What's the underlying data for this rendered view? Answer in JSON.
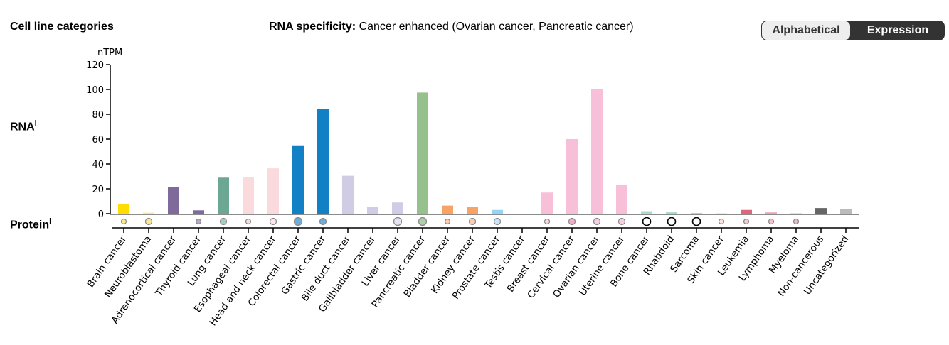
{
  "header": {
    "title": "Cell line categories",
    "specificity_label": "RNA specificity:",
    "specificity_value": "Cancer enhanced (Ovarian cancer, Pancreatic cancer)",
    "rna_label": "RNA",
    "protein_label": "Protein",
    "info_mark": "i"
  },
  "toggle": {
    "options": [
      "Alphabetical",
      "Expression"
    ],
    "selected": "Alphabetical"
  },
  "chart_data": {
    "type": "bar",
    "ylabel": "nTPM",
    "ylim": [
      0,
      120
    ],
    "yticks": [
      0,
      20,
      40,
      60,
      80,
      100,
      120
    ],
    "grid": false,
    "categories": [
      "Brain cancer",
      "Neuroblastoma",
      "Adrenocortical cancer",
      "Thyroid cancer",
      "Lung cancer",
      "Esophageal cancer",
      "Head and neck cancer",
      "Colorectal cancer",
      "Gastric cancer",
      "Bile duct cancer",
      "Gallbladder cancer",
      "Liver cancer",
      "Pancreatic cancer",
      "Bladder cancer",
      "Kidney cancer",
      "Prostate cancer",
      "Testis cancer",
      "Breast cancer",
      "Cervical cancer",
      "Ovarian cancer",
      "Uterine cancer",
      "Bone cancer",
      "Rhabdoid",
      "Sarcoma",
      "Skin cancer",
      "Leukemia",
      "Lymphoma",
      "Myeloma",
      "Non-cancerous",
      "Uncategorized"
    ],
    "values": [
      8,
      0.8,
      21.5,
      2.7,
      29,
      29.5,
      36.5,
      55,
      84.5,
      30.5,
      5.5,
      9,
      97.5,
      6.5,
      5.5,
      3,
      0,
      17,
      60,
      100.5,
      23,
      2,
      1.2,
      0.6,
      0.3,
      3,
      1,
      0.5,
      4.5,
      3.5
    ],
    "colors": [
      "#ffdd00",
      "#fbe98f",
      "#7f6a9c",
      "#7f6a9c",
      "#6ba792",
      "#fadadd",
      "#fadadd",
      "#1280c4",
      "#1280c4",
      "#d0cce6",
      "#d0cce6",
      "#d0cce6",
      "#96c18c",
      "#f9a266",
      "#f9a266",
      "#95d4f3",
      "#95d4f3",
      "#f8bfd8",
      "#f8bfd8",
      "#f8bfd8",
      "#f8bfd8",
      "#a8dccb",
      "#a8dccb",
      "#a8dccb",
      "#fbd7c2",
      "#e0667a",
      "#eda4b0",
      "#f7d1d7",
      "#666666",
      "#bbbbbb"
    ],
    "protein": [
      {
        "fill": "#fbe98f",
        "level": "low"
      },
      {
        "fill": "#fbe98f",
        "level": "medium"
      },
      null,
      {
        "fill": "#b3a9c9",
        "level": "low"
      },
      {
        "fill": "#a6cdbd",
        "level": "medium"
      },
      {
        "fill": "#f5dfe2",
        "level": "low"
      },
      {
        "fill": "#fbe8ea",
        "level": "medium"
      },
      {
        "fill": "#6aaee0",
        "level": "high"
      },
      {
        "fill": "#6aaee0",
        "level": "medium"
      },
      null,
      null,
      {
        "fill": "#e6e4f2",
        "level": "high"
      },
      {
        "fill": "#aecfa7",
        "level": "high"
      },
      {
        "fill": "#fbcdb4",
        "level": "low"
      },
      {
        "fill": "#fbcdb4",
        "level": "medium"
      },
      {
        "fill": "#c7e7f8",
        "level": "medium"
      },
      null,
      {
        "fill": "#f7dbe7",
        "level": "low"
      },
      {
        "fill": "#f4aac8",
        "level": "medium"
      },
      {
        "fill": "#f8cfe0",
        "level": "medium"
      },
      {
        "fill": "#f8cfe0",
        "level": "medium"
      },
      {
        "fill": "#ffffff",
        "level": "outline"
      },
      {
        "fill": "#ffffff",
        "level": "outline"
      },
      {
        "fill": "#ffffff",
        "level": "outline"
      },
      {
        "fill": "#fbe5e0",
        "level": "low"
      },
      {
        "fill": "#f5cbd2",
        "level": "low"
      },
      {
        "fill": "#f3c3ce",
        "level": "low"
      },
      {
        "fill": "#efb9c4",
        "level": "low"
      },
      null,
      null
    ]
  }
}
